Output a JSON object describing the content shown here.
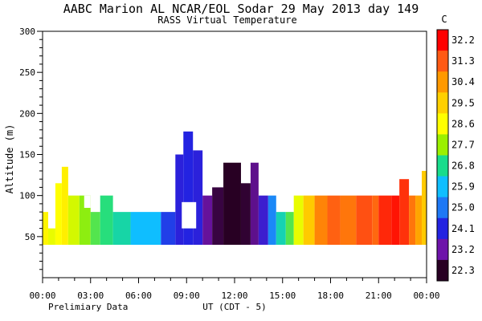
{
  "header": {
    "title": "AABC Marion AL  NCAR/EOL Sodar  29 May 2013  day 149",
    "subtitle": "RASS Virtual Temperature",
    "footer_left": "Prelimiary Data"
  },
  "chart_data": {
    "type": "heatmap",
    "title": "AABC Marion AL  NCAR/EOL Sodar  29 May 2013  day 149",
    "subtitle": "RASS Virtual Temperature",
    "xlabel": "UT  (CDT - 5)",
    "ylabel": "Altitude (m)",
    "xlim": [
      0,
      24
    ],
    "ylim": [
      0,
      300
    ],
    "x_ticks": [
      "00:00",
      "03:00",
      "06:00",
      "09:00",
      "12:00",
      "15:00",
      "18:00",
      "21:00",
      "00:00"
    ],
    "y_ticks": [
      "50",
      "100",
      "150",
      "200",
      "250",
      "300"
    ],
    "colorbar": {
      "unit": "C",
      "labels": [
        "32.2",
        "31.3",
        "30.4",
        "29.5",
        "28.6",
        "27.7",
        "26.8",
        "25.9",
        "25.0",
        "24.1",
        "23.2",
        "22.3"
      ],
      "colors": [
        "#ff0000",
        "#ff5a14",
        "#ff9900",
        "#ffd000",
        "#ffff00",
        "#9bf000",
        "#19dc8c",
        "#0fbeff",
        "#1e78f5",
        "#2323e1",
        "#6e14aa",
        "#280023"
      ]
    },
    "data_columns": [
      {
        "x0": 0.0,
        "x1": 0.35,
        "value": 28.8,
        "bottom": 40,
        "top": 80
      },
      {
        "x0": 0.35,
        "x1": 0.8,
        "value": 28.4,
        "bottom": 40,
        "top": 60
      },
      {
        "x0": 0.8,
        "x1": 1.2,
        "value": 28.6,
        "bottom": 40,
        "top": 115
      },
      {
        "x0": 1.2,
        "x1": 1.6,
        "value": 28.9,
        "bottom": 40,
        "top": 135
      },
      {
        "x0": 1.6,
        "x1": 2.3,
        "value": 28.2,
        "bottom": 40,
        "top": 100
      },
      {
        "x0": 2.3,
        "x1": 3.0,
        "value": 27.6,
        "bottom": 40,
        "top": 100
      },
      {
        "x0": 3.0,
        "x1": 3.6,
        "value": 27.2,
        "bottom": 40,
        "top": 80
      },
      {
        "x0": 3.6,
        "x1": 4.4,
        "value": 26.9,
        "bottom": 40,
        "top": 100
      },
      {
        "x0": 4.4,
        "x1": 5.5,
        "value": 26.6,
        "bottom": 40,
        "top": 80
      },
      {
        "x0": 5.5,
        "x1": 7.4,
        "value": 25.9,
        "bottom": 40,
        "top": 80
      },
      {
        "x0": 7.4,
        "x1": 8.3,
        "value": 24.4,
        "bottom": 40,
        "top": 80
      },
      {
        "x0": 8.3,
        "x1": 8.8,
        "value": 24.0,
        "bottom": 40,
        "top": 150
      },
      {
        "x0": 8.8,
        "x1": 9.4,
        "value": 24.1,
        "bottom": 40,
        "top": 178
      },
      {
        "x0": 9.4,
        "x1": 10.0,
        "value": 24.0,
        "bottom": 40,
        "top": 155
      },
      {
        "x0": 10.0,
        "x1": 10.6,
        "value": 23.1,
        "bottom": 40,
        "top": 100
      },
      {
        "x0": 10.6,
        "x1": 11.3,
        "value": 22.5,
        "bottom": 40,
        "top": 110
      },
      {
        "x0": 11.3,
        "x1": 12.4,
        "value": 22.3,
        "bottom": 40,
        "top": 140
      },
      {
        "x0": 12.4,
        "x1": 13.0,
        "value": 22.4,
        "bottom": 40,
        "top": 115
      },
      {
        "x0": 13.0,
        "x1": 13.5,
        "value": 23.0,
        "bottom": 40,
        "top": 140
      },
      {
        "x0": 13.5,
        "x1": 14.1,
        "value": 23.8,
        "bottom": 40,
        "top": 100
      },
      {
        "x0": 14.1,
        "x1": 14.6,
        "value": 25.2,
        "bottom": 40,
        "top": 100
      },
      {
        "x0": 14.6,
        "x1": 15.2,
        "value": 26.5,
        "bottom": 40,
        "top": 80
      },
      {
        "x0": 15.2,
        "x1": 15.7,
        "value": 27.2,
        "bottom": 40,
        "top": 80
      },
      {
        "x0": 15.7,
        "x1": 16.3,
        "value": 28.4,
        "bottom": 40,
        "top": 100
      },
      {
        "x0": 16.3,
        "x1": 17.0,
        "value": 29.6,
        "bottom": 40,
        "top": 100
      },
      {
        "x0": 17.0,
        "x1": 17.8,
        "value": 30.7,
        "bottom": 40,
        "top": 100
      },
      {
        "x0": 17.8,
        "x1": 18.6,
        "value": 31.2,
        "bottom": 40,
        "top": 100
      },
      {
        "x0": 18.6,
        "x1": 19.6,
        "value": 30.9,
        "bottom": 40,
        "top": 100
      },
      {
        "x0": 19.6,
        "x1": 20.6,
        "value": 31.4,
        "bottom": 40,
        "top": 100
      },
      {
        "x0": 20.6,
        "x1": 21.0,
        "value": 31.1,
        "bottom": 40,
        "top": 100
      },
      {
        "x0": 21.0,
        "x1": 21.8,
        "value": 31.8,
        "bottom": 40,
        "top": 100
      },
      {
        "x0": 21.8,
        "x1": 22.3,
        "value": 32.0,
        "bottom": 40,
        "top": 100
      },
      {
        "x0": 22.3,
        "x1": 22.9,
        "value": 31.7,
        "bottom": 40,
        "top": 120
      },
      {
        "x0": 22.9,
        "x1": 23.3,
        "value": 30.9,
        "bottom": 40,
        "top": 100
      },
      {
        "x0": 23.3,
        "x1": 23.7,
        "value": 30.2,
        "bottom": 40,
        "top": 100
      },
      {
        "x0": 23.7,
        "x1": 24.0,
        "value": 29.6,
        "bottom": 40,
        "top": 130
      }
    ],
    "gaps": [
      {
        "x0": 2.6,
        "x1": 3.0,
        "bottom": 85,
        "top": 100
      },
      {
        "x0": 8.7,
        "x1": 9.6,
        "bottom": 60,
        "top": 92
      }
    ],
    "grid": false,
    "legend": "colorbar-right"
  }
}
